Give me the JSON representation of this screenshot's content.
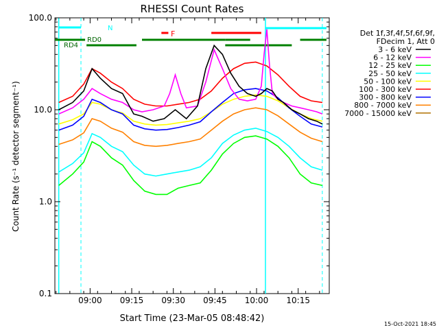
{
  "chart_data": {
    "type": "line",
    "title": "RHESSI Count Rates",
    "xlabel": "Start Time (23-Mar-05 08:48:42)",
    "ylabel": "Count Rate (s⁻¹ detector segment⁻¹)",
    "y_scale": "log",
    "ylim": [
      0.1,
      100.0
    ],
    "xlim_minutes_after_0848": [
      -1.4,
      97.5
    ],
    "x_ticks": [
      {
        "label": "09:00",
        "min": 11.3
      },
      {
        "label": "09:15",
        "min": 26.3
      },
      {
        "label": "09:30",
        "min": 41.3
      },
      {
        "label": "09:45",
        "min": 56.3
      },
      {
        "label": "10:00",
        "min": 71.3
      },
      {
        "label": "10:15",
        "min": 86.3
      }
    ],
    "y_ticks": [
      {
        "label": "0.1",
        "v": 0.1
      },
      {
        "label": "1.0",
        "v": 1.0
      },
      {
        "label": "10.0",
        "v": 10.0
      },
      {
        "label": "100.0",
        "v": 100.0
      }
    ],
    "legend": {
      "placement": "right",
      "header": [
        "Det 1f,3f,4f,5f,6f,9f,",
        "FDecim 1, Att 0"
      ]
    },
    "series": [
      {
        "name": "3 - 6 keV",
        "color": "#000000",
        "x": [
          0,
          5,
          9,
          12,
          15,
          19,
          23,
          27,
          30,
          34,
          38,
          42,
          46,
          50,
          53,
          56,
          59,
          62,
          65,
          68,
          71,
          73,
          75,
          77,
          79,
          81,
          84,
          87,
          90,
          93,
          95
        ],
        "y": [
          10,
          12,
          16,
          28,
          22,
          17,
          15,
          9,
          8.5,
          7.5,
          8,
          10,
          8,
          11,
          28,
          50,
          40,
          25,
          18,
          15,
          14,
          15,
          17,
          16,
          13,
          12,
          10,
          9,
          8,
          7.5,
          7
        ]
      },
      {
        "name": "6 - 12 keV",
        "color": "#ff00ff",
        "x": [
          0,
          5,
          9,
          12,
          15,
          19,
          23,
          27,
          30,
          34,
          38,
          40,
          42,
          44,
          46,
          50,
          53,
          56,
          59,
          62,
          65,
          68,
          71,
          73,
          74,
          75,
          76,
          77,
          79,
          81,
          84,
          87,
          90,
          93,
          95
        ],
        "y": [
          9,
          10.5,
          13,
          17,
          15,
          13,
          12,
          10,
          9.5,
          10,
          11,
          15,
          24,
          15,
          10.5,
          11,
          20,
          45,
          28,
          17,
          13,
          12.5,
          13,
          18,
          40,
          75,
          30,
          15,
          13,
          12,
          11,
          10.5,
          10,
          9.5,
          9
        ]
      },
      {
        "name": "12 - 25 keV",
        "color": "#00ff00",
        "x": [
          0,
          5,
          9,
          12,
          15,
          19,
          23,
          27,
          31,
          35,
          39,
          43,
          47,
          51,
          55,
          59,
          63,
          67,
          71,
          75,
          79,
          83,
          87,
          91,
          95
        ],
        "y": [
          1.5,
          2.0,
          2.7,
          4.5,
          4.0,
          3.0,
          2.5,
          1.7,
          1.3,
          1.2,
          1.2,
          1.4,
          1.5,
          1.6,
          2.2,
          3.3,
          4.3,
          5.0,
          5.2,
          4.8,
          4.0,
          3.0,
          2.0,
          1.6,
          1.5
        ]
      },
      {
        "name": "25 - 50 keV",
        "color": "#00ffff",
        "x": [
          0,
          5,
          9,
          12,
          15,
          19,
          23,
          27,
          31,
          35,
          39,
          43,
          47,
          51,
          55,
          59,
          63,
          67,
          71,
          75,
          79,
          83,
          87,
          91,
          95
        ],
        "y": [
          2.1,
          2.6,
          3.4,
          5.5,
          5.0,
          4.0,
          3.5,
          2.5,
          2.0,
          1.9,
          2.0,
          2.1,
          2.2,
          2.4,
          3.0,
          4.3,
          5.3,
          6.0,
          6.3,
          5.8,
          5.0,
          4.0,
          3.0,
          2.4,
          2.2
        ]
      },
      {
        "name": "50 - 100 keV",
        "color": "#ffff00",
        "x": [
          0,
          5,
          9,
          12,
          15,
          19,
          23,
          27,
          31,
          35,
          39,
          43,
          47,
          51,
          55,
          59,
          63,
          67,
          71,
          75,
          79,
          83,
          87,
          91,
          95
        ],
        "y": [
          7.0,
          7.8,
          9.0,
          12,
          11.5,
          10,
          9.2,
          7.5,
          7.0,
          6.8,
          6.9,
          7.2,
          7.5,
          8.0,
          9.5,
          11.5,
          13,
          14,
          14.5,
          14,
          12.5,
          10.5,
          9.0,
          8.0,
          7.5
        ]
      },
      {
        "name": "100 - 300 keV",
        "color": "#ff0000",
        "x": [
          0,
          5,
          9,
          12,
          15,
          19,
          23,
          27,
          31,
          35,
          39,
          43,
          47,
          51,
          55,
          59,
          63,
          67,
          71,
          75,
          79,
          83,
          87,
          91,
          95
        ],
        "y": [
          12,
          14,
          19,
          28,
          25,
          20,
          17,
          13,
          11.5,
          11,
          11,
          11.5,
          12,
          13,
          16,
          22,
          28,
          32,
          33,
          30,
          24,
          18,
          14,
          12.5,
          12
        ]
      },
      {
        "name": "300 - 800 keV",
        "color": "#0000ff",
        "x": [
          0,
          5,
          9,
          12,
          15,
          19,
          23,
          27,
          31,
          35,
          39,
          43,
          47,
          51,
          55,
          59,
          63,
          67,
          71,
          75,
          79,
          83,
          87,
          91,
          95
        ],
        "y": [
          6.0,
          6.8,
          8.5,
          13,
          12,
          10,
          9.0,
          6.8,
          6.2,
          6.0,
          6.1,
          6.4,
          6.8,
          7.4,
          9.5,
          12,
          15,
          16.5,
          17,
          16,
          13.5,
          10.5,
          8.5,
          7.0,
          6.5
        ]
      },
      {
        "name": "800 - 7000 keV",
        "color": "#ff8000",
        "x": [
          0,
          5,
          9,
          12,
          15,
          19,
          23,
          27,
          31,
          35,
          39,
          43,
          47,
          51,
          55,
          59,
          63,
          67,
          71,
          75,
          79,
          83,
          87,
          91,
          95
        ],
        "y": [
          4.2,
          4.7,
          5.6,
          8.0,
          7.5,
          6.3,
          5.7,
          4.5,
          4.1,
          4.0,
          4.1,
          4.3,
          4.5,
          4.8,
          6.0,
          7.5,
          9.0,
          10,
          10.5,
          10,
          8.6,
          7.0,
          5.7,
          4.9,
          4.5
        ]
      },
      {
        "name": "7000 - 15000 keV",
        "color": "#b07000",
        "x": [],
        "y": []
      }
    ],
    "annotations": {
      "attenuator_bar_label": "F",
      "night_label": "N",
      "decimation_labels": [
        "RD0",
        "RD4"
      ]
    },
    "footer_date": "15-Oct-2021 18:45"
  }
}
